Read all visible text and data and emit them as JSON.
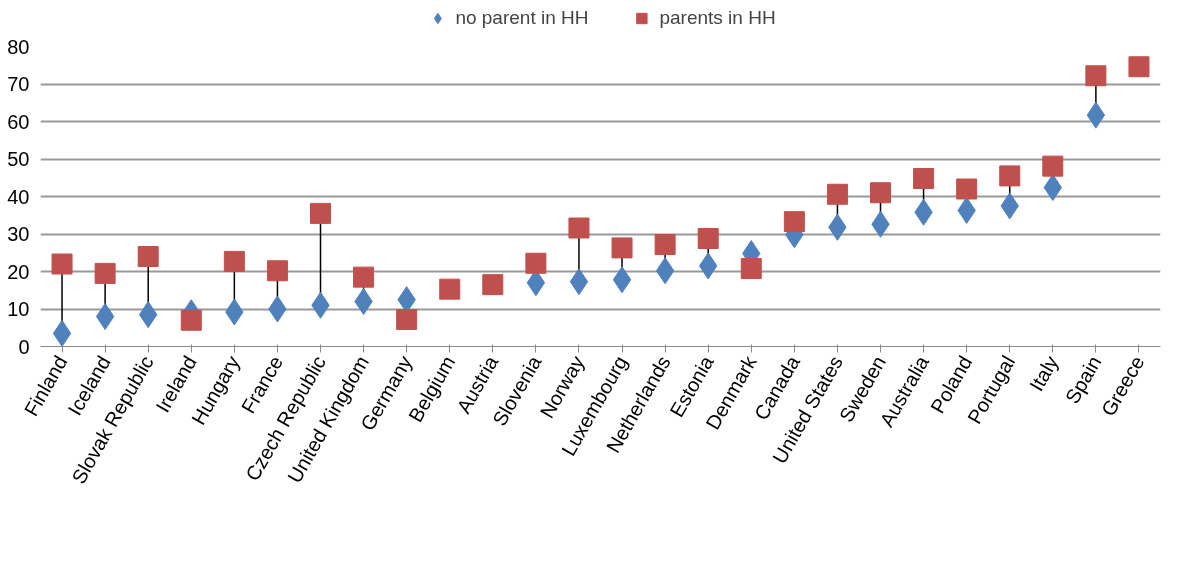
{
  "chart_data": {
    "type": "scatter",
    "categories": [
      "Finland",
      "Iceland",
      "Slovak Republic",
      "Ireland",
      "Hungary",
      "France",
      "Czech Republic",
      "United Kingdom",
      "Germany",
      "Belgium",
      "Austria",
      "Slovenia",
      "Norway",
      "Luxembourg",
      "Netherlands",
      "Estonia",
      "Denmark",
      "Canada",
      "United States",
      "Sweden",
      "Australia",
      "Poland",
      "Portugal",
      "Italy",
      "Spain",
      "Greece"
    ],
    "series": [
      {
        "name": "no parent in HH",
        "color": "#4f81bd",
        "marker": "diamond",
        "values": [
          3.5,
          8,
          8.5,
          9,
          9.2,
          10,
          11,
          12,
          12.5,
          null,
          null,
          17,
          17.3,
          17.8,
          20.2,
          21.5,
          24.8,
          29.8,
          31.8,
          32.6,
          35.8,
          36.3,
          37.5,
          42.4,
          61.7,
          null
        ]
      },
      {
        "name": "parents in HH",
        "color": "#c0504d",
        "marker": "square",
        "values": [
          22,
          19.5,
          24,
          7,
          22.7,
          20.2,
          35.5,
          18.5,
          7.2,
          15.3,
          16.5,
          22.2,
          31.6,
          26.3,
          27.2,
          28.8,
          20.8,
          33.3,
          40.6,
          41,
          44.8,
          42,
          45.5,
          48.1,
          72.2,
          74.6
        ]
      }
    ],
    "ylim": [
      0,
      80
    ],
    "yticks": [
      0,
      10,
      20,
      30,
      40,
      50,
      60,
      70,
      80
    ],
    "grid": "y",
    "legend": "top"
  }
}
